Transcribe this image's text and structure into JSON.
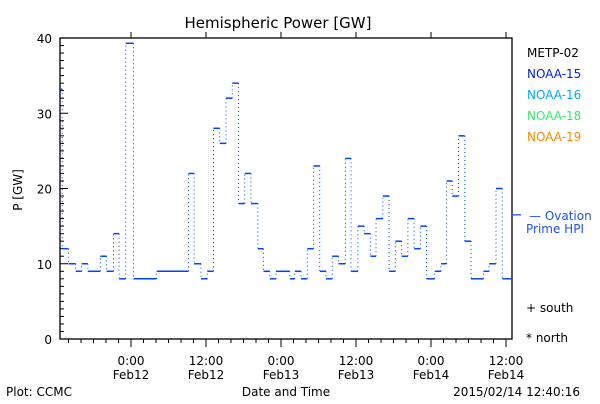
{
  "chart_data": {
    "type": "line",
    "title": "Hemispheric Power [GW]",
    "ylabel": "P [GW]",
    "xlabel": "Date and Time",
    "ylim": [
      0,
      40
    ],
    "yticks": [
      0,
      10,
      20,
      30,
      40
    ],
    "x_units": "hours since Feb12 0:00",
    "xlim": [
      -11.36,
      60.96
    ],
    "xticks": [
      {
        "hour": 0,
        "time": "0:00",
        "date": "Feb12"
      },
      {
        "hour": 12,
        "time": "12:00",
        "date": "Feb12"
      },
      {
        "hour": 24,
        "time": "0:00",
        "date": "Feb13"
      },
      {
        "hour": 36,
        "time": "12:00",
        "date": "Feb13"
      },
      {
        "hour": 48,
        "time": "0:00",
        "date": "Feb14"
      },
      {
        "hour": 60,
        "time": "12:00",
        "date": "Feb14"
      }
    ],
    "legend": [
      {
        "label": "METP-02",
        "color": "#000000"
      },
      {
        "label": "NOAA-15",
        "color": "#0022ee"
      },
      {
        "label": "NOAA-16",
        "color": "#00aaff"
      },
      {
        "label": "NOAA-18",
        "color": "#33ee66"
      },
      {
        "label": "NOAA-19",
        "color": "#ff8800"
      }
    ],
    "ovation": {
      "label1": "— Ovation",
      "label2": "Prime HPI",
      "value": 16.5,
      "color": "#2050ff"
    },
    "markers": {
      "south": "+ south",
      "north": "* north"
    },
    "series": [
      {
        "name": "NOAA-15",
        "color": "#0044ff",
        "steps": [
          [
            -11.2,
            33.2
          ],
          [
            -11.0,
            12
          ],
          [
            -10.0,
            10
          ],
          [
            -8.85,
            9
          ],
          [
            -7.9,
            10
          ],
          [
            -6.9,
            9
          ],
          [
            -4.9,
            11
          ],
          [
            -3.9,
            9
          ],
          [
            -2.8,
            14
          ],
          [
            -1.9,
            8
          ],
          [
            -0.85,
            39.3
          ],
          [
            0.4,
            8
          ],
          [
            4.1,
            9
          ],
          [
            9.2,
            22
          ],
          [
            10.1,
            10
          ],
          [
            11.2,
            8
          ],
          [
            12.2,
            9
          ],
          [
            13.2,
            28
          ],
          [
            14.2,
            26
          ],
          [
            15.2,
            32
          ],
          [
            16.2,
            34
          ],
          [
            17.2,
            18
          ],
          [
            18.2,
            22
          ],
          [
            19.2,
            18
          ],
          [
            20.3,
            12
          ],
          [
            21.2,
            9
          ],
          [
            22.2,
            8
          ],
          [
            23.2,
            9
          ],
          [
            25.4,
            8
          ],
          [
            26.2,
            9
          ],
          [
            27.2,
            8
          ],
          [
            28.2,
            12
          ],
          [
            29.2,
            23
          ],
          [
            30.2,
            9
          ],
          [
            31.2,
            8
          ],
          [
            32.2,
            11
          ],
          [
            33.2,
            10
          ],
          [
            34.3,
            24
          ],
          [
            35.2,
            9
          ],
          [
            36.3,
            15
          ],
          [
            37.3,
            14
          ],
          [
            38.3,
            11
          ],
          [
            39.2,
            16
          ],
          [
            40.3,
            19
          ],
          [
            41.3,
            9
          ],
          [
            42.3,
            13
          ],
          [
            43.3,
            11
          ],
          [
            44.3,
            16
          ],
          [
            45.3,
            12
          ],
          [
            46.3,
            15
          ],
          [
            47.3,
            8
          ],
          [
            48.6,
            9
          ],
          [
            49.6,
            10
          ],
          [
            50.5,
            21
          ],
          [
            51.4,
            19
          ],
          [
            52.4,
            27
          ],
          [
            53.4,
            13
          ],
          [
            54.4,
            8
          ],
          [
            56.4,
            9
          ],
          [
            57.3,
            10
          ],
          [
            58.4,
            20
          ],
          [
            59.4,
            8
          ]
        ],
        "end_hour": 60.96
      }
    ]
  },
  "footer": {
    "left": "Plot: CCMC",
    "center": "Date and Time",
    "right": "2015/02/14 12:40:16"
  }
}
